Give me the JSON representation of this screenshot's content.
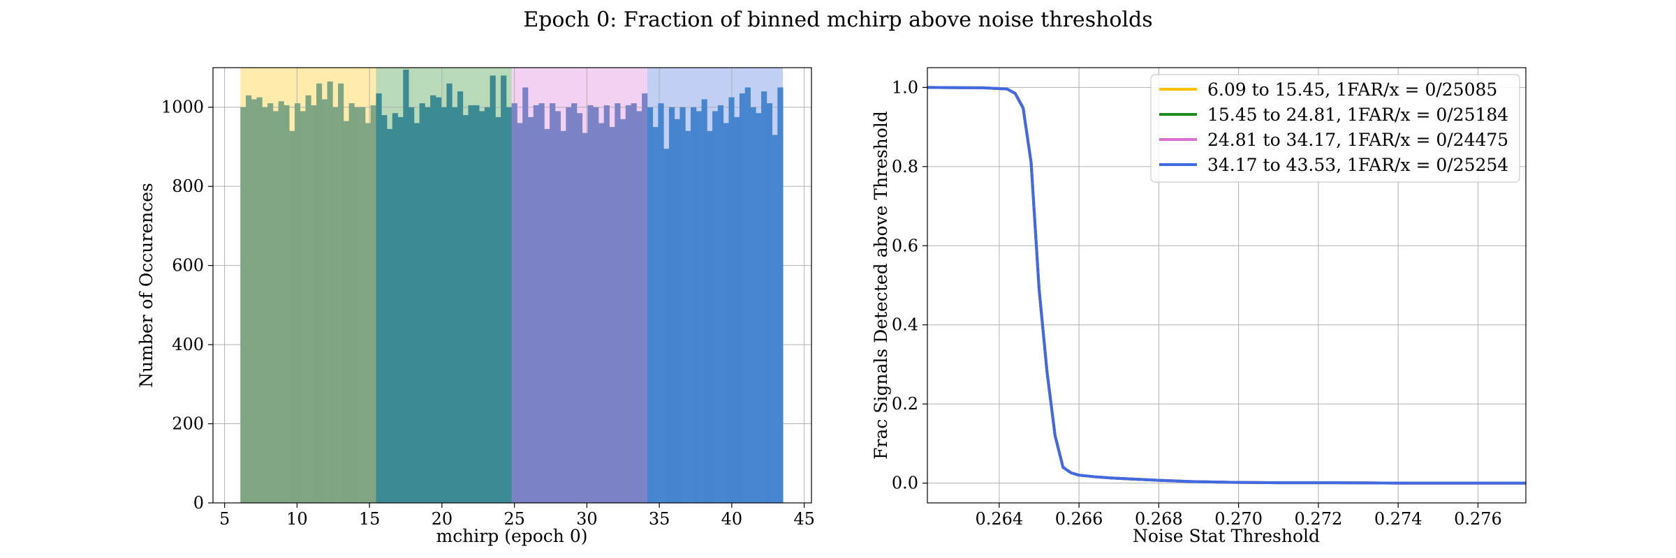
{
  "title": "Epoch 0: Fraction of binned mchirp above noise thresholds",
  "colors": {
    "bin1": "#ffc300",
    "bin2": "#228b22",
    "bin3": "#da70d6",
    "bin4": "#4169e1",
    "bin1_bar": "#80a583",
    "bin2_bar": "#3c8a92",
    "bin3_bar": "#7b83c6",
    "bin4_bar": "#4785cf",
    "grid": "#b0b0b0"
  },
  "chart_data": [
    {
      "type": "bar",
      "subtype": "histogram",
      "xlabel": "mchirp (epoch 0)",
      "ylabel": "Number of Occurences",
      "xlim": [
        4.2,
        45.5
      ],
      "ylim": [
        0,
        1100
      ],
      "xticks": [
        5,
        10,
        15,
        20,
        25,
        30,
        35,
        40,
        45
      ],
      "yticks": [
        0,
        200,
        400,
        600,
        800,
        1000
      ],
      "grid": true,
      "bin_range": [
        6.09,
        43.53
      ],
      "bin_count": 100,
      "bin_edges_groups": [
        6.09,
        15.45,
        24.81,
        34.17,
        43.53
      ],
      "band_top": 1100,
      "values": [
        1000,
        1030,
        1020,
        1025,
        1000,
        1010,
        990,
        1015,
        1005,
        940,
        1010,
        990,
        1030,
        1005,
        1060,
        1020,
        1065,
        1000,
        1060,
        965,
        1010,
        1000,
        1000,
        960,
        1005,
        1035,
        980,
        945,
        985,
        975,
        1095,
        1000,
        960,
        1010,
        1000,
        1030,
        1025,
        1000,
        1060,
        1000,
        1040,
        980,
        1005,
        1005,
        990,
        1000,
        1080,
        975,
        1080,
        1000,
        1010,
        960,
        1050,
        975,
        1005,
        1010,
        945,
        1010,
        990,
        940,
        1000,
        1010,
        985,
        935,
        1005,
        1000,
        960,
        1005,
        950,
        1010,
        970,
        1005,
        1010,
        990,
        1035,
        1000,
        950,
        1010,
        895,
        1000,
        970,
        1000,
        940,
        1000,
        990,
        1020,
        940,
        990,
        1005,
        960,
        1025,
        975,
        1035,
        1050,
        1000,
        985,
        1040,
        1010,
        930,
        1050
      ]
    },
    {
      "type": "line",
      "xlabel": "Noise Stat Threshold",
      "ylabel": "Frac Signals Detected above Threshold",
      "xlim": [
        0.2622,
        0.2772
      ],
      "ylim": [
        -0.05,
        1.05
      ],
      "xticks": [
        0.264,
        0.266,
        0.268,
        0.27,
        0.272,
        0.274,
        0.276
      ],
      "xtick_labels": [
        "0.264",
        "0.266",
        "0.268",
        "0.270",
        "0.272",
        "0.274",
        "0.276"
      ],
      "yticks": [
        0.0,
        0.2,
        0.4,
        0.6,
        0.8,
        1.0
      ],
      "ytick_labels": [
        "0.0",
        "0.2",
        "0.4",
        "0.6",
        "0.8",
        "1.0"
      ],
      "grid": true,
      "legend_position": "top-right",
      "series": [
        {
          "name": "6.09 to 15.45, 1FAR/x = 0/25085",
          "color_key": "bin1",
          "x": [
            0.2622,
            0.2636,
            0.2642,
            0.2644,
            0.2646,
            0.2648,
            0.265,
            0.2652,
            0.2654,
            0.2656,
            0.2658,
            0.266,
            0.2664,
            0.2668,
            0.2674,
            0.268,
            0.2688,
            0.2698,
            0.271,
            0.2725,
            0.274,
            0.2755,
            0.2772
          ],
          "y": [
            1.0,
            0.999,
            0.996,
            0.985,
            0.948,
            0.81,
            0.49,
            0.28,
            0.12,
            0.04,
            0.026,
            0.02,
            0.016,
            0.013,
            0.01,
            0.007,
            0.004,
            0.002,
            0.001,
            0.001,
            0.0,
            0.0,
            0.0
          ]
        },
        {
          "name": "15.45 to 24.81, 1FAR/x = 0/25184",
          "color_key": "bin2",
          "x": [
            0.2622,
            0.2636,
            0.2642,
            0.2644,
            0.2646,
            0.2648,
            0.265,
            0.2652,
            0.2654,
            0.2656,
            0.2658,
            0.266,
            0.2664,
            0.2668,
            0.2674,
            0.268,
            0.2688,
            0.2698,
            0.271,
            0.2725,
            0.274,
            0.2755,
            0.2772
          ],
          "y": [
            1.0,
            0.999,
            0.996,
            0.985,
            0.948,
            0.81,
            0.49,
            0.28,
            0.12,
            0.04,
            0.026,
            0.02,
            0.016,
            0.013,
            0.01,
            0.007,
            0.004,
            0.002,
            0.001,
            0.001,
            0.0,
            0.0,
            0.0
          ]
        },
        {
          "name": "24.81 to 34.17, 1FAR/x = 0/24475",
          "color_key": "bin3",
          "x": [
            0.2622,
            0.2636,
            0.2642,
            0.2644,
            0.2646,
            0.2648,
            0.265,
            0.2652,
            0.2654,
            0.2656,
            0.2658,
            0.266,
            0.2664,
            0.2668,
            0.2674,
            0.268,
            0.2688,
            0.2698,
            0.271,
            0.2725,
            0.274,
            0.2755,
            0.2772
          ],
          "y": [
            1.0,
            0.999,
            0.996,
            0.985,
            0.948,
            0.81,
            0.49,
            0.28,
            0.12,
            0.04,
            0.026,
            0.02,
            0.016,
            0.013,
            0.01,
            0.007,
            0.004,
            0.002,
            0.001,
            0.001,
            0.0,
            0.0,
            0.0
          ]
        },
        {
          "name": "34.17 to 43.53, 1FAR/x = 0/25254",
          "color_key": "bin4",
          "x": [
            0.2622,
            0.2636,
            0.2642,
            0.2644,
            0.2646,
            0.2648,
            0.265,
            0.2652,
            0.2654,
            0.2656,
            0.2658,
            0.266,
            0.2664,
            0.2668,
            0.2674,
            0.268,
            0.2688,
            0.2698,
            0.271,
            0.2725,
            0.274,
            0.2755,
            0.2772
          ],
          "y": [
            1.0,
            0.999,
            0.996,
            0.985,
            0.948,
            0.81,
            0.49,
            0.28,
            0.12,
            0.04,
            0.026,
            0.02,
            0.016,
            0.013,
            0.01,
            0.007,
            0.004,
            0.002,
            0.001,
            0.001,
            0.0,
            0.0,
            0.0
          ]
        }
      ]
    }
  ]
}
